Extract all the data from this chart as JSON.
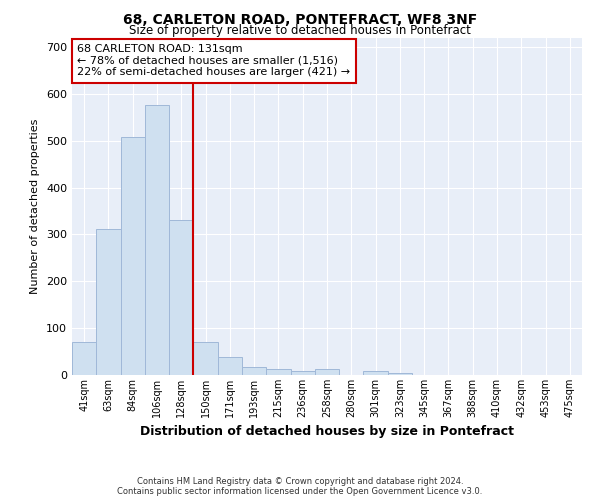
{
  "title1": "68, CARLETON ROAD, PONTEFRACT, WF8 3NF",
  "title2": "Size of property relative to detached houses in Pontefract",
  "xlabel": "Distribution of detached houses by size in Pontefract",
  "ylabel": "Number of detached properties",
  "footer1": "Contains HM Land Registry data © Crown copyright and database right 2024.",
  "footer2": "Contains public sector information licensed under the Open Government Licence v3.0.",
  "annotation_title": "68 CARLETON ROAD: 131sqm",
  "annotation_line1": "← 78% of detached houses are smaller (1,516)",
  "annotation_line2": "22% of semi-detached houses are larger (421) →",
  "bar_labels": [
    "41sqm",
    "63sqm",
    "84sqm",
    "106sqm",
    "128sqm",
    "150sqm",
    "171sqm",
    "193sqm",
    "215sqm",
    "236sqm",
    "258sqm",
    "280sqm",
    "301sqm",
    "323sqm",
    "345sqm",
    "367sqm",
    "388sqm",
    "410sqm",
    "432sqm",
    "453sqm",
    "475sqm"
  ],
  "bar_values": [
    70,
    312,
    508,
    575,
    330,
    70,
    38,
    18,
    12,
    8,
    12,
    0,
    8,
    5,
    0,
    0,
    0,
    0,
    0,
    0,
    0
  ],
  "bar_color": "#cfe0f0",
  "bar_edge_color": "#a0b8d8",
  "property_line_x": 4.5,
  "property_line_color": "#cc0000",
  "annotation_box_color": "#cc0000",
  "background_color": "#e8eef8",
  "ylim": [
    0,
    720
  ],
  "yticks": [
    0,
    100,
    200,
    300,
    400,
    500,
    600,
    700
  ]
}
